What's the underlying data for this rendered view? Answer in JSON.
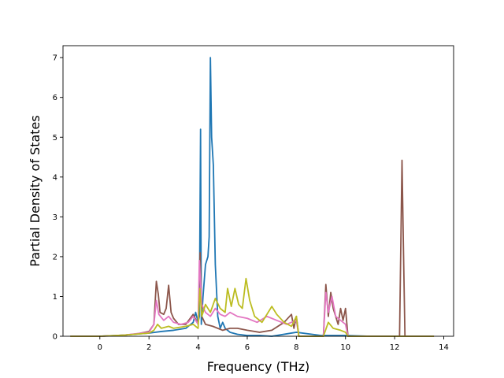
{
  "chart_data": {
    "type": "line",
    "title": "",
    "xlabel": "Frequency (THz)",
    "ylabel": "Partial Density of States",
    "xlim": [
      -1.5,
      14.4
    ],
    "ylim": [
      0,
      7.3
    ],
    "x_ticks": [
      0,
      2,
      4,
      6,
      8,
      10,
      12,
      14
    ],
    "y_ticks": [
      0,
      1,
      2,
      3,
      4,
      5,
      6,
      7
    ],
    "grid": false,
    "legend": "none",
    "series": [
      {
        "color": "#1f77b4",
        "points": [
          [
            -1.2,
            0
          ],
          [
            0,
            0
          ],
          [
            1,
            0.03
          ],
          [
            2,
            0.08
          ],
          [
            2.5,
            0.12
          ],
          [
            3,
            0.15
          ],
          [
            3.5,
            0.2
          ],
          [
            3.8,
            0.35
          ],
          [
            3.9,
            0.6
          ],
          [
            4.0,
            0.35
          ],
          [
            4.05,
            0.5
          ],
          [
            4.1,
            5.2
          ],
          [
            4.13,
            0.3
          ],
          [
            4.2,
            1.0
          ],
          [
            4.3,
            1.8
          ],
          [
            4.4,
            2.0
          ],
          [
            4.45,
            2.5
          ],
          [
            4.5,
            7.0
          ],
          [
            4.55,
            5.0
          ],
          [
            4.62,
            4.3
          ],
          [
            4.7,
            1.8
          ],
          [
            4.8,
            0.5
          ],
          [
            4.9,
            0.2
          ],
          [
            5.0,
            0.35
          ],
          [
            5.1,
            0.2
          ],
          [
            5.3,
            0.1
          ],
          [
            5.6,
            0.05
          ],
          [
            6,
            0.02
          ],
          [
            6.5,
            0.02
          ],
          [
            7,
            0
          ],
          [
            8,
            0.1
          ],
          [
            9,
            0.02
          ],
          [
            10,
            0.02
          ],
          [
            11,
            0
          ],
          [
            12,
            0
          ],
          [
            13.6,
            0
          ]
        ]
      },
      {
        "color": "#8c564b",
        "points": [
          [
            -1.2,
            0
          ],
          [
            0,
            0
          ],
          [
            0.5,
            0.01
          ],
          [
            1,
            0.03
          ],
          [
            1.5,
            0.06
          ],
          [
            2,
            0.12
          ],
          [
            2.2,
            0.3
          ],
          [
            2.3,
            1.38
          ],
          [
            2.38,
            1.05
          ],
          [
            2.45,
            0.6
          ],
          [
            2.6,
            0.55
          ],
          [
            2.7,
            0.7
          ],
          [
            2.8,
            1.28
          ],
          [
            2.9,
            0.6
          ],
          [
            3.0,
            0.45
          ],
          [
            3.2,
            0.3
          ],
          [
            3.5,
            0.3
          ],
          [
            3.8,
            0.55
          ],
          [
            4.0,
            0.3
          ],
          [
            4.08,
            2.1
          ],
          [
            4.15,
            0.5
          ],
          [
            4.3,
            0.3
          ],
          [
            4.6,
            0.25
          ],
          [
            5.0,
            0.15
          ],
          [
            5.3,
            0.2
          ],
          [
            5.6,
            0.2
          ],
          [
            6.0,
            0.15
          ],
          [
            6.5,
            0.1
          ],
          [
            7.0,
            0.15
          ],
          [
            7.5,
            0.35
          ],
          [
            7.8,
            0.55
          ],
          [
            7.9,
            0.2
          ],
          [
            8.0,
            0.5
          ],
          [
            8.1,
            0
          ],
          [
            9.1,
            0
          ],
          [
            9.2,
            1.3
          ],
          [
            9.3,
            0.5
          ],
          [
            9.4,
            1.1
          ],
          [
            9.5,
            0.7
          ],
          [
            9.7,
            0.3
          ],
          [
            9.8,
            0.7
          ],
          [
            9.9,
            0.4
          ],
          [
            10.0,
            0.7
          ],
          [
            10.1,
            0
          ],
          [
            12.2,
            0
          ],
          [
            12.3,
            4.42
          ],
          [
            12.35,
            2.5
          ],
          [
            12.42,
            0
          ],
          [
            13.6,
            0
          ]
        ]
      },
      {
        "color": "#e377c2",
        "points": [
          [
            -1.2,
            0
          ],
          [
            0,
            0
          ],
          [
            1,
            0.03
          ],
          [
            2,
            0.1
          ],
          [
            2.2,
            0.3
          ],
          [
            2.3,
            0.9
          ],
          [
            2.4,
            0.55
          ],
          [
            2.6,
            0.4
          ],
          [
            2.8,
            0.5
          ],
          [
            3.0,
            0.35
          ],
          [
            3.3,
            0.3
          ],
          [
            3.6,
            0.35
          ],
          [
            3.8,
            0.5
          ],
          [
            4.0,
            0.3
          ],
          [
            4.05,
            1.9
          ],
          [
            4.15,
            0.8
          ],
          [
            4.3,
            0.6
          ],
          [
            4.5,
            0.5
          ],
          [
            4.7,
            0.7
          ],
          [
            4.9,
            0.55
          ],
          [
            5.1,
            0.5
          ],
          [
            5.3,
            0.6
          ],
          [
            5.6,
            0.5
          ],
          [
            6.0,
            0.45
          ],
          [
            6.4,
            0.35
          ],
          [
            6.8,
            0.5
          ],
          [
            7.2,
            0.4
          ],
          [
            7.6,
            0.3
          ],
          [
            8.0,
            0.4
          ],
          [
            8.1,
            0
          ],
          [
            9.1,
            0
          ],
          [
            9.2,
            1.1
          ],
          [
            9.3,
            0.6
          ],
          [
            9.45,
            1.0
          ],
          [
            9.6,
            0.5
          ],
          [
            9.8,
            0.4
          ],
          [
            10.0,
            0.3
          ],
          [
            10.1,
            0
          ],
          [
            13.6,
            0
          ]
        ]
      },
      {
        "color": "#bcbd22",
        "points": [
          [
            -1.2,
            0
          ],
          [
            0,
            0
          ],
          [
            1,
            0.03
          ],
          [
            2,
            0.08
          ],
          [
            2.2,
            0.15
          ],
          [
            2.35,
            0.3
          ],
          [
            2.5,
            0.2
          ],
          [
            2.8,
            0.25
          ],
          [
            3.0,
            0.2
          ],
          [
            3.5,
            0.25
          ],
          [
            3.8,
            0.3
          ],
          [
            4.0,
            0.2
          ],
          [
            4.07,
            1.2
          ],
          [
            4.15,
            0.5
          ],
          [
            4.3,
            0.8
          ],
          [
            4.5,
            0.6
          ],
          [
            4.7,
            0.95
          ],
          [
            4.9,
            0.7
          ],
          [
            5.1,
            0.6
          ],
          [
            5.2,
            1.2
          ],
          [
            5.35,
            0.75
          ],
          [
            5.5,
            1.2
          ],
          [
            5.65,
            0.8
          ],
          [
            5.8,
            0.7
          ],
          [
            5.95,
            1.45
          ],
          [
            6.1,
            0.9
          ],
          [
            6.3,
            0.5
          ],
          [
            6.6,
            0.35
          ],
          [
            7.0,
            0.75
          ],
          [
            7.2,
            0.55
          ],
          [
            7.5,
            0.35
          ],
          [
            7.8,
            0.25
          ],
          [
            8.0,
            0.5
          ],
          [
            8.1,
            0
          ],
          [
            9.1,
            0
          ],
          [
            9.3,
            0.35
          ],
          [
            9.5,
            0.2
          ],
          [
            9.8,
            0.15
          ],
          [
            10.0,
            0.1
          ],
          [
            10.1,
            0
          ],
          [
            13.6,
            0
          ]
        ]
      }
    ]
  }
}
